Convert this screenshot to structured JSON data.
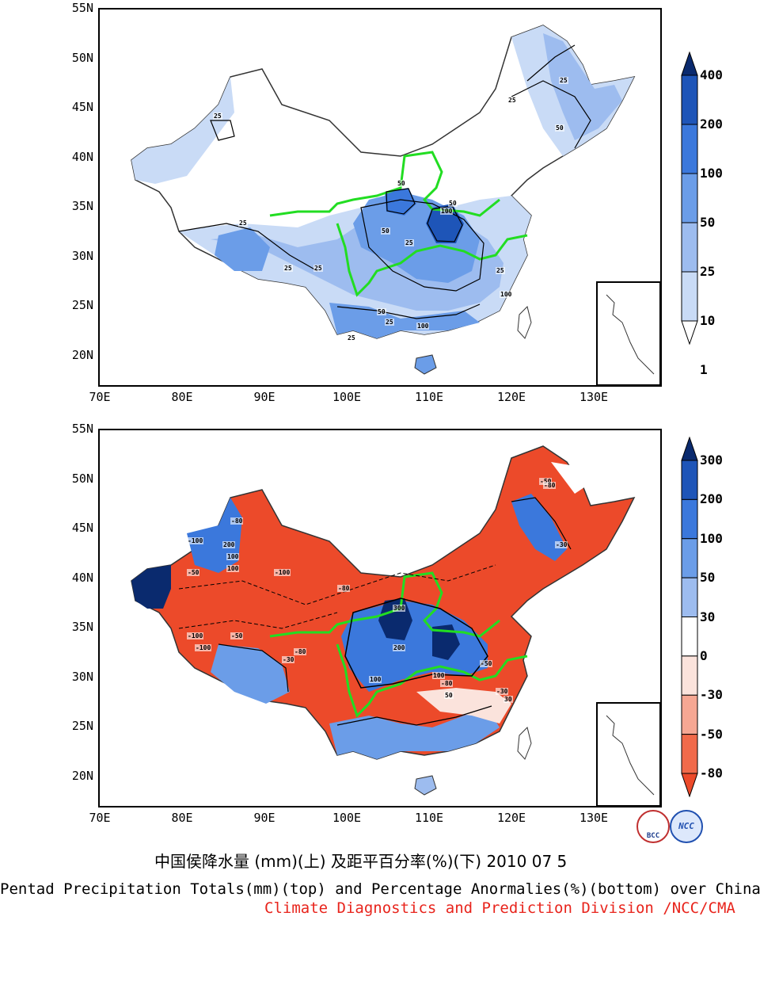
{
  "top_map": {
    "lat_labels": [
      "55N",
      "50N",
      "45N",
      "40N",
      "35N",
      "30N",
      "25N",
      "20N"
    ],
    "lon_labels": [
      "70E",
      "80E",
      "90E",
      "100E",
      "110E",
      "120E",
      "130E"
    ],
    "colorbar_labels": [
      "400",
      "200",
      "100",
      "50",
      "25",
      "10",
      "1"
    ],
    "colorbar_colors": [
      "#0a2a6e",
      "#1e55b8",
      "#3b78dc",
      "#6b9de8",
      "#9dbcef",
      "#c9dbf6",
      "#ffffff"
    ],
    "contour_labels": [
      "25",
      "25",
      "25",
      "50",
      "25",
      "50",
      "25",
      "100",
      "50",
      "25",
      "25",
      "25",
      "50",
      "25",
      "100",
      "25",
      "100",
      "50"
    ]
  },
  "bottom_map": {
    "lat_labels": [
      "55N",
      "50N",
      "45N",
      "40N",
      "35N",
      "30N",
      "25N",
      "20N"
    ],
    "lon_labels": [
      "70E",
      "80E",
      "90E",
      "100E",
      "110E",
      "120E",
      "130E"
    ],
    "colorbar_labels": [
      "300",
      "200",
      "100",
      "50",
      "30",
      "0",
      "-30",
      "-50",
      "-80"
    ],
    "colorbar_colors": [
      "#0a2a6e",
      "#1e55b8",
      "#3b78dc",
      "#6b9de8",
      "#9dbcef",
      "#ffffff",
      "#fbe3dc",
      "#f6a793",
      "#f16a4a",
      "#ec4a2a"
    ],
    "contour_labels": [
      "-100",
      "-80",
      "-50",
      "-100",
      "200",
      "100",
      "-80",
      "-100",
      "-50",
      "-30",
      "-80",
      "300",
      "200",
      "100",
      "-50",
      "-30",
      "-80",
      "100",
      "50",
      "30",
      "-30",
      "-50",
      "100",
      "-100",
      "-80"
    ]
  },
  "caption_cn": "中国侯降水量 (mm)(上) 及距平百分率(%)(下) 2010 07 5",
  "caption_en": "Pentad Precipitation Totals(mm)(top) and Percentage Anormalies(%)(bottom) over China",
  "caption_org": "Climate Diagnostics and Prediction Division /NCC/CMA",
  "logos": [
    "BCC",
    "NCC"
  ]
}
